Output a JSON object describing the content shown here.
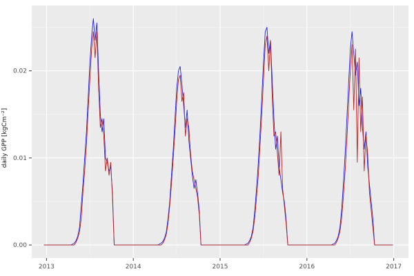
{
  "figure": {
    "y_axis_title": "daily GPP [kgCm⁻²]"
  },
  "chart_data": {
    "type": "line",
    "title": "",
    "xlabel": "",
    "ylabel": "daily GPP [kgCm⁻²]",
    "legend": "none",
    "panel_bg": "#EBEBEB",
    "grid_major_color": "#FFFFFF",
    "grid_minor_color": "#F5F5F5",
    "axis_text_color": "#4D4D4D",
    "tick_mark_color": "#333333",
    "x_range": [
      2012.83,
      2017.17
    ],
    "y_range": [
      -0.0015,
      0.0275
    ],
    "x_ticks": [
      2013,
      2014,
      2015,
      2016,
      2017
    ],
    "x_tick_labels": [
      "2013",
      "2014",
      "2015",
      "2016",
      "2017"
    ],
    "x_minor_ticks": [
      2013.5,
      2014.5,
      2015.5,
      2016.5
    ],
    "y_ticks": [
      0,
      0.01,
      0.02
    ],
    "y_tick_labels": [
      "0.00",
      "0.01",
      "0.02"
    ],
    "y_minor_ticks": [
      0.005,
      0.015,
      0.025
    ],
    "x": [
      2012.97,
      2013.0,
      2013.1,
      2013.2,
      2013.28,
      2013.32,
      2013.34,
      2013.36,
      2013.38,
      2013.4,
      2013.42,
      2013.44,
      2013.46,
      2013.48,
      2013.5,
      2013.52,
      2013.54,
      2013.56,
      2013.58,
      2013.6,
      2013.62,
      2013.64,
      2013.66,
      2013.68,
      2013.7,
      2013.72,
      2013.74,
      2013.76,
      2013.78,
      2013.9,
      2014.0,
      2014.1,
      2014.2,
      2014.28,
      2014.32,
      2014.34,
      2014.36,
      2014.38,
      2014.4,
      2014.42,
      2014.44,
      2014.46,
      2014.48,
      2014.5,
      2014.52,
      2014.54,
      2014.56,
      2014.58,
      2014.6,
      2014.62,
      2014.64,
      2014.66,
      2014.68,
      2014.7,
      2014.72,
      2014.74,
      2014.76,
      2014.78,
      2014.9,
      2015.0,
      2015.1,
      2015.2,
      2015.28,
      2015.32,
      2015.34,
      2015.36,
      2015.38,
      2015.4,
      2015.42,
      2015.44,
      2015.46,
      2015.48,
      2015.5,
      2015.52,
      2015.54,
      2015.56,
      2015.58,
      2015.6,
      2015.62,
      2015.64,
      2015.66,
      2015.68,
      2015.7,
      2015.72,
      2015.74,
      2015.76,
      2015.78,
      2015.9,
      2016.0,
      2016.1,
      2016.2,
      2016.28,
      2016.32,
      2016.34,
      2016.36,
      2016.38,
      2016.4,
      2016.42,
      2016.44,
      2016.46,
      2016.48,
      2016.5,
      2016.52,
      2016.54,
      2016.56,
      2016.58,
      2016.6,
      2016.62,
      2016.64,
      2016.66,
      2016.68,
      2016.7,
      2016.72,
      2016.74,
      2016.76,
      2016.78,
      2016.9,
      2016.99
    ],
    "series": [
      {
        "name": "series-blue",
        "color": "#2222DD",
        "values": [
          0,
          0,
          0,
          0,
          0,
          0.0002,
          0.0005,
          0.001,
          0.002,
          0.0045,
          0.007,
          0.01,
          0.013,
          0.017,
          0.021,
          0.024,
          0.026,
          0.0235,
          0.0255,
          0.02,
          0.015,
          0.013,
          0.0145,
          0.01,
          0.0095,
          0.0085,
          0.009,
          0.006,
          0,
          0,
          0,
          0,
          0,
          0,
          0.0002,
          0.0004,
          0.0008,
          0.0015,
          0.003,
          0.005,
          0.008,
          0.011,
          0.0145,
          0.018,
          0.02,
          0.0205,
          0.0185,
          0.016,
          0.0135,
          0.0155,
          0.012,
          0.01,
          0.008,
          0.0065,
          0.0075,
          0.006,
          0.004,
          0,
          0,
          0,
          0,
          0,
          0,
          0.0002,
          0.0005,
          0.001,
          0.002,
          0.004,
          0.0065,
          0.0095,
          0.013,
          0.017,
          0.021,
          0.0245,
          0.025,
          0.022,
          0.0235,
          0.019,
          0.0145,
          0.011,
          0.0125,
          0.009,
          0.0075,
          0.006,
          0.005,
          0.003,
          0,
          0,
          0,
          0,
          0,
          0,
          0.0002,
          0.0005,
          0.001,
          0.002,
          0.004,
          0.007,
          0.0105,
          0.0145,
          0.0185,
          0.0225,
          0.0245,
          0.022,
          0.0195,
          0.021,
          0.016,
          0.018,
          0.0135,
          0.011,
          0.013,
          0.009,
          0.007,
          0.005,
          0.003,
          0,
          0,
          0
        ]
      },
      {
        "name": "series-red",
        "color": "#B22222",
        "values": [
          0,
          0,
          0,
          0,
          0,
          0,
          0.0003,
          0.0008,
          0.0015,
          0.003,
          0.006,
          0.0085,
          0.0115,
          0.0155,
          0.019,
          0.0225,
          0.0245,
          0.0215,
          0.0245,
          0.018,
          0.0135,
          0.0145,
          0.0125,
          0.0085,
          0.01,
          0.008,
          0.0095,
          0.0055,
          0,
          0,
          0,
          0,
          0,
          0,
          0,
          0.0002,
          0.0006,
          0.0012,
          0.0025,
          0.0045,
          0.007,
          0.01,
          0.013,
          0.0165,
          0.019,
          0.0195,
          0.0165,
          0.0175,
          0.0125,
          0.0145,
          0.0135,
          0.0105,
          0.0085,
          0.0075,
          0.0065,
          0.0055,
          0.0035,
          0,
          0,
          0,
          0,
          0,
          0,
          0,
          0.0003,
          0.0008,
          0.0016,
          0.0032,
          0.0055,
          0.008,
          0.0115,
          0.015,
          0.019,
          0.023,
          0.024,
          0.02,
          0.0235,
          0.017,
          0.0125,
          0.013,
          0.0105,
          0.008,
          0.013,
          0.0065,
          0.0045,
          0.0025,
          0,
          0,
          0,
          0,
          0,
          0,
          0,
          0.0003,
          0.0008,
          0.0015,
          0.003,
          0.0055,
          0.0085,
          0.012,
          0.016,
          0.02,
          0.023,
          0.0155,
          0.0225,
          0.0095,
          0.0215,
          0.013,
          0.017,
          0.0085,
          0.0125,
          0.0105,
          0.006,
          0.004,
          0.002,
          0,
          0,
          0
        ]
      }
    ]
  }
}
